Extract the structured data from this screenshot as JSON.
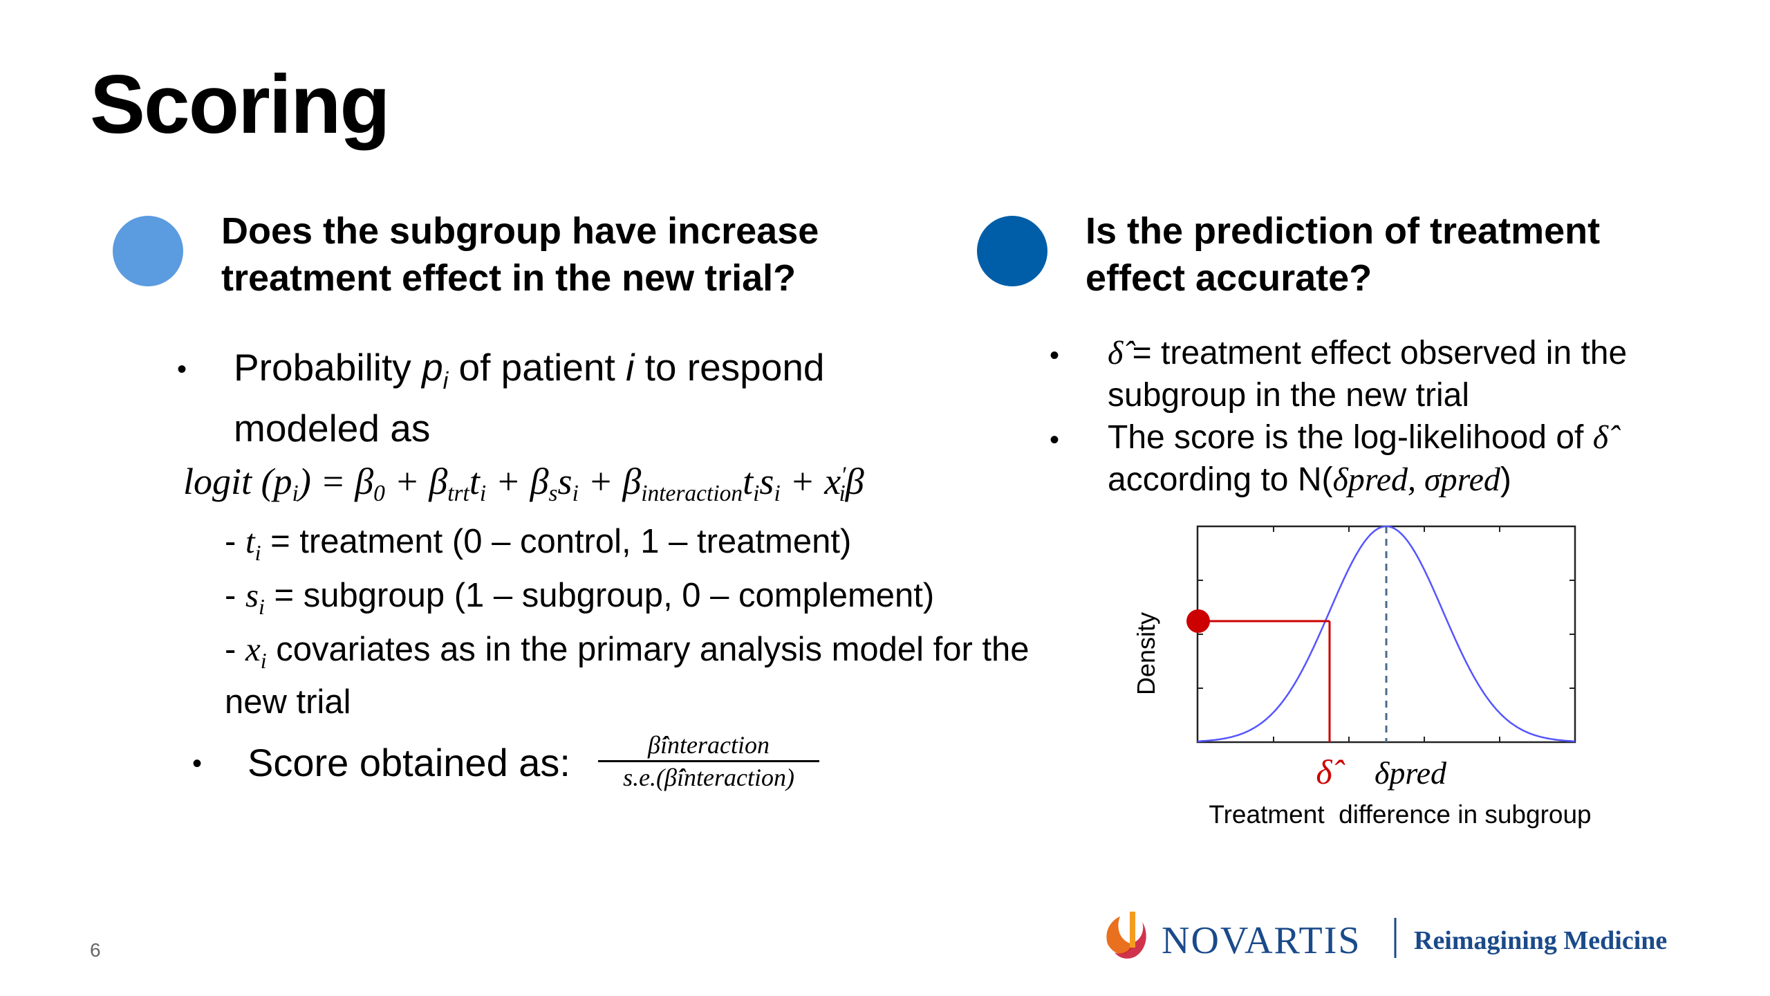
{
  "page": {
    "title": "Scoring",
    "page_number": "6"
  },
  "left": {
    "dot_color": "#5B9BE0",
    "heading": "Does the subgroup have increase treatment effect in the new trial?",
    "bullet1": {
      "prefix": "Probability ",
      "p": "p",
      "sub_i": "i",
      "mid": " of patient ",
      "i": "i",
      "suffix": " to respond modeled as"
    },
    "formula": "logit (p_i) = β_0 + β_trt t_i + β_s s_i + β_interaction t_i s_i + x'_i β",
    "definitions": [
      {
        "dash": "- ",
        "sym": "t",
        "sub": "i",
        "text": " = treatment (0 – control, 1 – treatment)"
      },
      {
        "dash": "- ",
        "sym": "s",
        "sub": "i",
        "text": " = subgroup (1 – subgroup, 0 – complement)"
      },
      {
        "dash": "- ",
        "sym": "x",
        "sub": "i",
        "text": " covariates as in the primary analysis model for the new trial"
      }
    ],
    "score_label": "Score obtained as:",
    "fraction": {
      "numerator": "β̂interaction",
      "denominator": "s.e.(β̂interaction)"
    }
  },
  "right": {
    "dot_color": "#005EA8",
    "heading": "Is the prediction of treatment effect accurate?",
    "bullets": [
      {
        "sym": "δ̂",
        "text": " = treatment effect observed in the subgroup in the new trial"
      },
      {
        "text": "The score is the log-likelihood of ",
        "sym": "δ̂",
        "tail": " according to N(",
        "tail_math": "δpred, σpred",
        "close": ")"
      }
    ]
  },
  "chart_data": {
    "type": "line",
    "title": "",
    "xlabel": "Treatment  difference in subgroup",
    "ylabel": "Density",
    "series": [
      {
        "values": "normal density curve centered at δpred"
      }
    ],
    "annotations": {
      "delta_hat": "δ̂",
      "delta_pred": "δpred"
    },
    "colors": {
      "curve": "#5555ff",
      "marker": "#cc0000",
      "dashed": "#4a6a8a"
    },
    "grid": false
  },
  "footer": {
    "brand": "NOVARTIS",
    "tagline": "Reimagining Medicine",
    "brand_color": "#1a4a8a",
    "tagline_color": "#1a4a8a",
    "logo_color": "#e8701f"
  }
}
